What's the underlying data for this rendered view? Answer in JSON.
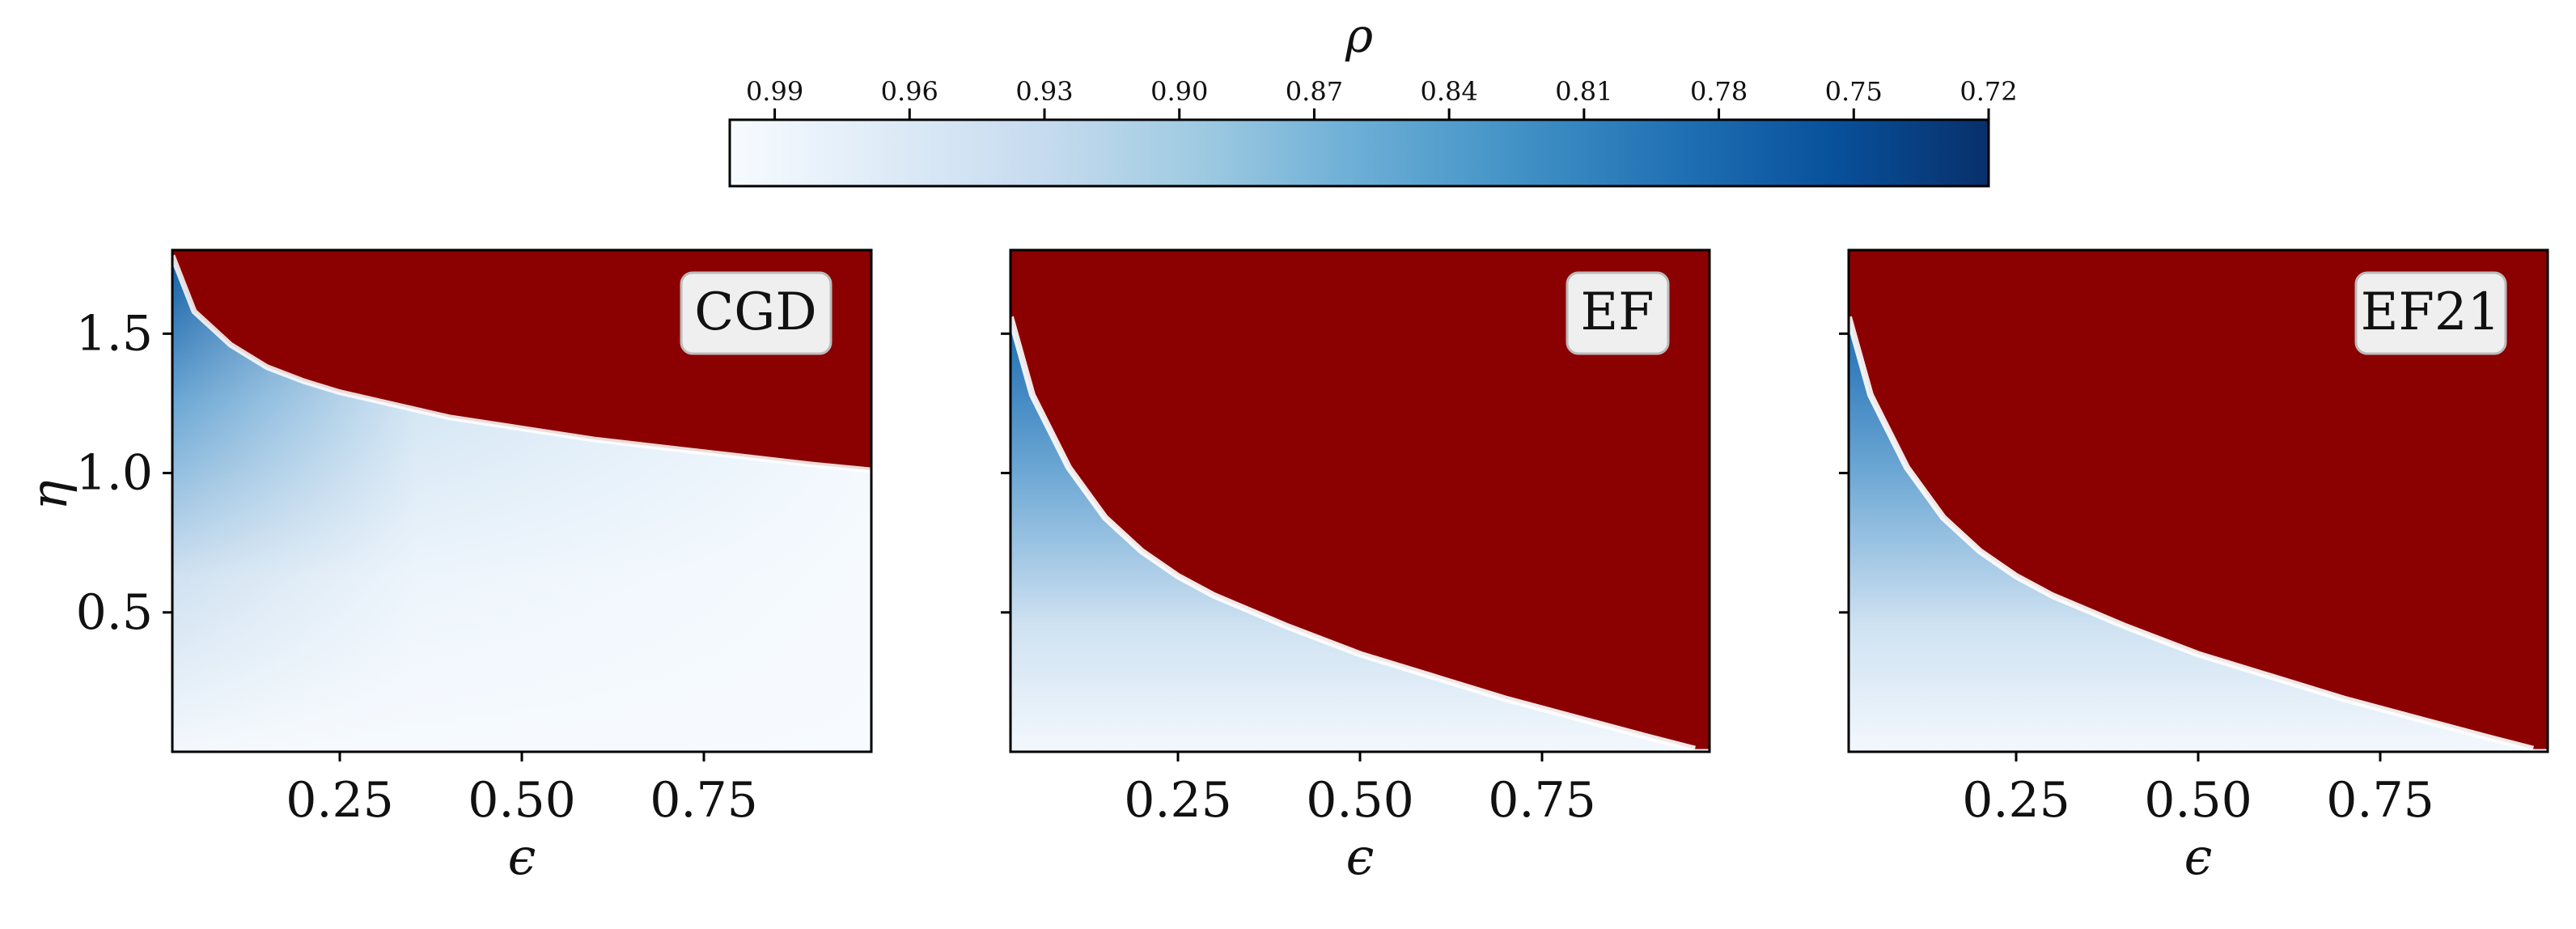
{
  "colorbar": {
    "label": "ρ",
    "ticks": [
      0.99,
      0.96,
      0.93,
      0.9,
      0.87,
      0.84,
      0.81,
      0.78,
      0.75,
      0.72
    ],
    "tick_labels": [
      "0.99",
      "0.96",
      "0.93",
      "0.90",
      "0.87",
      "0.84",
      "0.81",
      "0.78",
      "0.75",
      "0.72"
    ],
    "range": [
      1.0,
      0.72
    ],
    "colormap": "Blues",
    "colors": [
      "#f7fbff",
      "#deebf7",
      "#c6dbef",
      "#9ecae1",
      "#6baed6",
      "#4292c6",
      "#2171b5",
      "#08519c",
      "#08306b"
    ]
  },
  "divergent_color": "#8b0000",
  "chart_data": [
    {
      "type": "heatmap",
      "label": "CGD",
      "xlabel": "ϵ",
      "ylabel": "η",
      "xlim": [
        0.02,
        0.98
      ],
      "ylim": [
        0.0,
        1.8
      ],
      "xticks": [
        "0.25",
        "0.50",
        "0.75"
      ],
      "yticks": [
        "0.5",
        "1.0",
        "1.5"
      ],
      "stability_boundary": {
        "x": [
          0.02,
          0.05,
          0.1,
          0.15,
          0.2,
          0.25,
          0.3,
          0.4,
          0.5,
          0.6,
          0.7,
          0.8,
          0.9,
          0.98
        ],
        "y": [
          1.78,
          1.58,
          1.46,
          1.38,
          1.33,
          1.29,
          1.26,
          1.2,
          1.16,
          1.12,
          1.09,
          1.06,
          1.03,
          1.01
        ]
      }
    },
    {
      "type": "heatmap",
      "label": "EF",
      "xlabel": "ϵ",
      "ylabel": "",
      "xlim": [
        0.02,
        0.98
      ],
      "ylim": [
        0.0,
        1.8
      ],
      "xticks": [
        "0.25",
        "0.50",
        "0.75"
      ],
      "yticks": [
        "",
        "",
        ""
      ],
      "stability_boundary": {
        "x": [
          0.02,
          0.05,
          0.1,
          0.15,
          0.2,
          0.25,
          0.3,
          0.4,
          0.5,
          0.6,
          0.7,
          0.8,
          0.9,
          0.96
        ],
        "y": [
          1.56,
          1.28,
          1.02,
          0.84,
          0.72,
          0.63,
          0.56,
          0.45,
          0.35,
          0.27,
          0.19,
          0.12,
          0.05,
          0.01
        ]
      }
    },
    {
      "type": "heatmap",
      "label": "EF21",
      "xlabel": "ϵ",
      "ylabel": "",
      "xlim": [
        0.02,
        0.98
      ],
      "ylim": [
        0.0,
        1.8
      ],
      "xticks": [
        "0.25",
        "0.50",
        "0.75"
      ],
      "yticks": [
        "",
        "",
        ""
      ],
      "stability_boundary": {
        "x": [
          0.02,
          0.05,
          0.1,
          0.15,
          0.2,
          0.25,
          0.3,
          0.4,
          0.5,
          0.6,
          0.7,
          0.8,
          0.9,
          0.96
        ],
        "y": [
          1.56,
          1.28,
          1.02,
          0.84,
          0.72,
          0.63,
          0.56,
          0.45,
          0.35,
          0.27,
          0.19,
          0.12,
          0.05,
          0.01
        ]
      }
    }
  ]
}
